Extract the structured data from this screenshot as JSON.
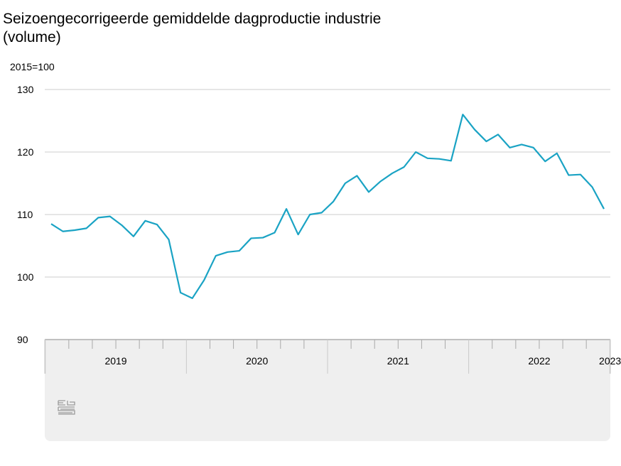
{
  "title_line1": "Seizoengecorrigeerde gemiddelde dagproductie industrie",
  "title_line2": "(volume)",
  "unit_label": "2015=100",
  "footer": {
    "logo_icon": "cbs-logo-icon"
  },
  "colors": {
    "line": "#1aa3c4",
    "grid": "#cccccc",
    "axis_band": "#efefef"
  },
  "chart_data": {
    "type": "line",
    "title": "Seizoengecorrigeerde gemiddelde dagproductie industrie (volume)",
    "ylabel": "2015=100",
    "ylim": [
      90,
      130
    ],
    "yticks": [
      90,
      100,
      110,
      120,
      130
    ],
    "grid": true,
    "x_start": "2019-01",
    "x_end": "2023-06",
    "years": [
      "2019",
      "2020",
      "2021",
      "2022",
      "2023"
    ],
    "series": [
      {
        "values": [
          108.5,
          107.3,
          107.5,
          107.8,
          109.5,
          109.7,
          108.3,
          106.5,
          109.0,
          108.4,
          106.0,
          97.5,
          96.6,
          99.5,
          103.4,
          104.0,
          104.2,
          106.2,
          106.3,
          107.1,
          110.9,
          106.8,
          110.0,
          110.3,
          112.1,
          115.0,
          116.2,
          113.6,
          115.3,
          116.6,
          117.6,
          120.0,
          119.0,
          118.9,
          118.6,
          126.0,
          123.6,
          121.7,
          122.8,
          120.7,
          121.2,
          120.7,
          118.5,
          119.8,
          116.3,
          116.4,
          114.4,
          110.9
        ]
      }
    ]
  }
}
